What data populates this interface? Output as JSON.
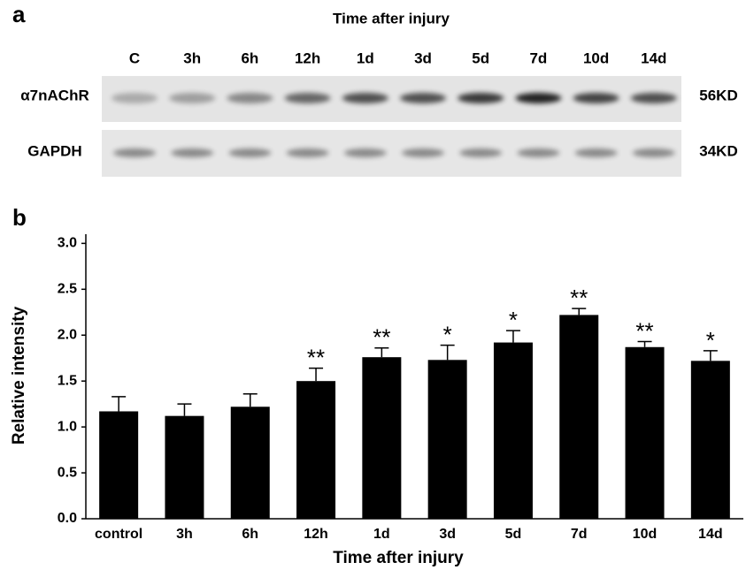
{
  "panel_a": {
    "label": "a",
    "title": "Time after injury",
    "lanes": [
      "C",
      "3h",
      "6h",
      "12h",
      "1d",
      "3d",
      "5d",
      "7d",
      "10d",
      "14d"
    ],
    "rows": [
      {
        "name": "α7nAChR",
        "size": "56KD"
      },
      {
        "name": "GAPDH",
        "size": "34KD"
      }
    ]
  },
  "chart_data": {
    "type": "bar",
    "panel_label": "b",
    "xlabel": "Time after injury",
    "ylabel": "Relative intensity",
    "categories": [
      "control",
      "3h",
      "6h",
      "12h",
      "1d",
      "3d",
      "5d",
      "7d",
      "10d",
      "14d"
    ],
    "values": [
      1.17,
      1.12,
      1.22,
      1.5,
      1.76,
      1.73,
      1.92,
      2.22,
      1.87,
      1.72
    ],
    "errors": [
      0.16,
      0.13,
      0.14,
      0.14,
      0.1,
      0.16,
      0.13,
      0.07,
      0.06,
      0.11
    ],
    "annotations": [
      null,
      null,
      null,
      "**",
      "**",
      "*",
      "*",
      "**",
      "**",
      "*"
    ],
    "color": "#000000",
    "ylim": [
      0,
      3.1
    ],
    "yticks": [
      {
        "value": 0,
        "label": "0.0"
      },
      0.5,
      {
        "value": 1,
        "label": "1.0"
      },
      1.5,
      {
        "value": 2,
        "label": "2.0"
      },
      2.5,
      {
        "value": 3,
        "label": "3.0"
      }
    ]
  }
}
